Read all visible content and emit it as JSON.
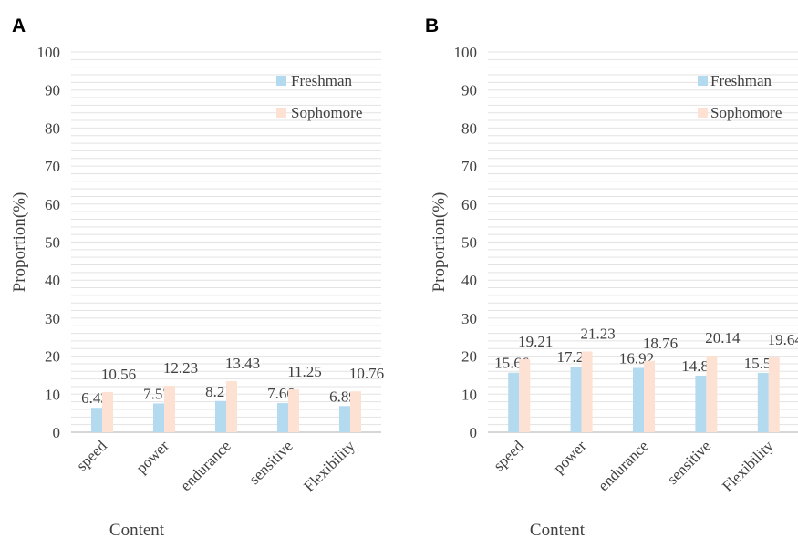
{
  "colors": {
    "freshman": "#b4daf0",
    "sophomore": "#fde2d4",
    "grid": "#e3e3e3",
    "axis": "#bfbfbf"
  },
  "chart_data": [
    {
      "panel": "A",
      "type": "bar",
      "categories": [
        "speed",
        "power",
        "endurance",
        "sensitive",
        "Flexibility"
      ],
      "series": [
        {
          "name": "Freshman",
          "values": [
            6.43,
            7.57,
            8.21,
            7.66,
            6.89
          ]
        },
        {
          "name": "Sophomore",
          "values": [
            10.56,
            12.23,
            13.43,
            11.25,
            10.76
          ]
        }
      ],
      "xlabel": "Content",
      "ylabel": "Proportion(%)",
      "ylim": [
        0,
        100
      ],
      "yticks": [
        0,
        10,
        20,
        30,
        40,
        50,
        60,
        70,
        80,
        90,
        100
      ],
      "grid": true,
      "legend": "top-right"
    },
    {
      "panel": "B",
      "type": "bar",
      "categories": [
        "speed",
        "power",
        "endurance",
        "sensitive",
        "Flexibility"
      ],
      "series": [
        {
          "name": "Freshman",
          "values": [
            15.66,
            17.24,
            16.92,
            14.88,
            15.59
          ]
        },
        {
          "name": "Sophomore",
          "values": [
            19.21,
            21.23,
            18.76,
            20.14,
            19.64
          ]
        }
      ],
      "xlabel": "Content",
      "ylabel": "Proportion(%)",
      "ylim": [
        0,
        100
      ],
      "yticks": [
        0,
        10,
        20,
        30,
        40,
        50,
        60,
        70,
        80,
        90,
        100
      ],
      "grid": true,
      "legend": "top-right"
    }
  ]
}
